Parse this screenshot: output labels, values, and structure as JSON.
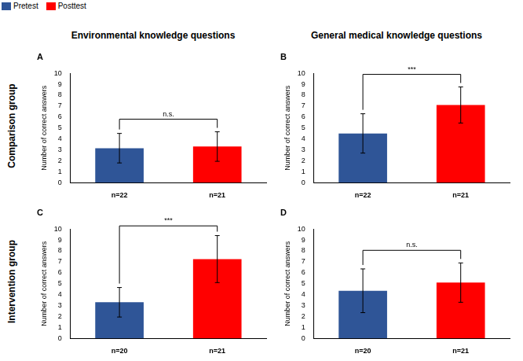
{
  "legend_entries": [
    {
      "name": "Pretest",
      "color": "#2f5597"
    },
    {
      "name": "Posttest",
      "color": "#ff0000"
    }
  ],
  "column_titles": [
    "Environmental knowledge questions",
    "General medical knowledge questions"
  ],
  "row_titles": [
    "Comparison group",
    "Intervention group"
  ],
  "chart_data": [
    {
      "type": "bar",
      "title": "A",
      "categories": [
        "n=22",
        "n=21"
      ],
      "values": [
        3.15,
        3.3
      ],
      "errors": [
        1.35,
        1.35
      ],
      "colors": [
        "#2f5597",
        "#ff0000"
      ],
      "y_label": "Number of correct answers",
      "ylim": [
        0,
        10
      ],
      "yticks": [
        0,
        1,
        2,
        3,
        4,
        5,
        6,
        7,
        8,
        9,
        10
      ],
      "grid": false,
      "annotation": "n.s."
    },
    {
      "type": "bar",
      "title": "B",
      "categories": [
        "n=22",
        "n=21"
      ],
      "values": [
        4.5,
        7.1
      ],
      "errors": [
        1.8,
        1.65
      ],
      "colors": [
        "#2f5597",
        "#ff0000"
      ],
      "y_label": "Number of correct answers",
      "ylim": [
        0,
        10
      ],
      "yticks": [
        0,
        1,
        2,
        3,
        4,
        5,
        6,
        7,
        8,
        9,
        10
      ],
      "grid": false,
      "annotation": "***"
    },
    {
      "type": "bar",
      "title": "C",
      "categories": [
        "n=20",
        "n=21"
      ],
      "values": [
        3.3,
        7.25
      ],
      "errors": [
        1.35,
        2.15
      ],
      "colors": [
        "#2f5597",
        "#ff0000"
      ],
      "y_label": "Number of correct answers",
      "ylim": [
        0,
        10
      ],
      "yticks": [
        0,
        1,
        2,
        3,
        4,
        5,
        6,
        7,
        8,
        9,
        10
      ],
      "grid": false,
      "annotation": "***"
    },
    {
      "type": "bar",
      "title": "D",
      "categories": [
        "n=20",
        "n=21"
      ],
      "values": [
        4.35,
        5.1
      ],
      "errors": [
        2.0,
        1.8
      ],
      "colors": [
        "#2f5597",
        "#ff0000"
      ],
      "y_label": "Number of correct answers",
      "ylim": [
        0,
        10
      ],
      "yticks": [
        0,
        1,
        2,
        3,
        4,
        5,
        6,
        7,
        8,
        9,
        10
      ],
      "grid": false,
      "annotation": "n.s."
    }
  ]
}
